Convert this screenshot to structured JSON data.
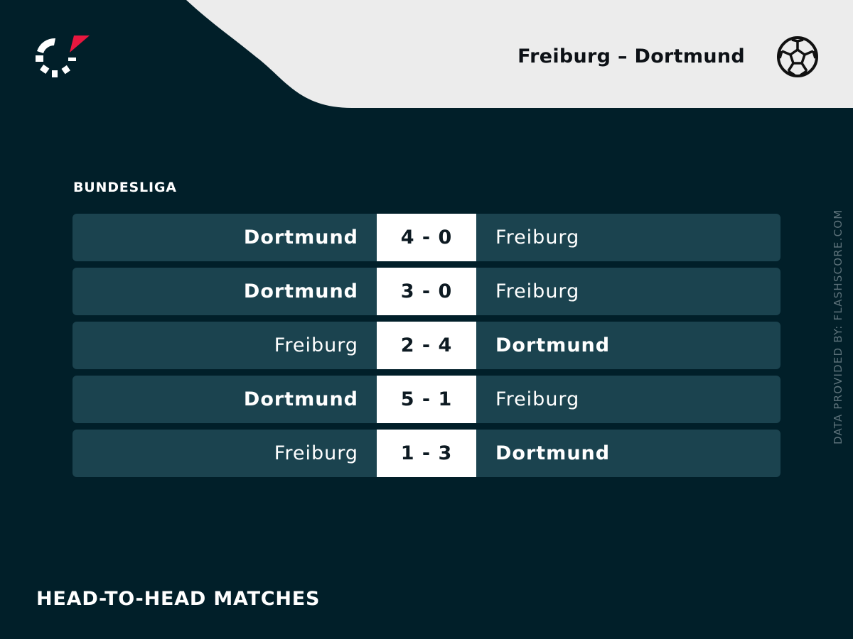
{
  "header": {
    "match_title": "Freiburg – Dortmund",
    "logo_icon": "flashscore-logo",
    "sport_icon": "football-icon"
  },
  "competition": "BUNDESLIGA",
  "matches": [
    {
      "home": "Dortmund",
      "score": "4 - 0",
      "away": "Freiburg",
      "winner": "home"
    },
    {
      "home": "Dortmund",
      "score": "3 - 0",
      "away": "Freiburg",
      "winner": "home"
    },
    {
      "home": "Freiburg",
      "score": "2 - 4",
      "away": "Dortmund",
      "winner": "away"
    },
    {
      "home": "Dortmund",
      "score": "5 - 1",
      "away": "Freiburg",
      "winner": "home"
    },
    {
      "home": "Freiburg",
      "score": "1 - 3",
      "away": "Dortmund",
      "winner": "away"
    }
  ],
  "credit": "DATA PROVIDED BY: FLASHSCORE.COM",
  "footer_title": "HEAD-TO-HEAD MATCHES",
  "colors": {
    "background": "#011f29",
    "row": "#1b434f",
    "header": "#ececec",
    "accent": "#e8173f"
  }
}
